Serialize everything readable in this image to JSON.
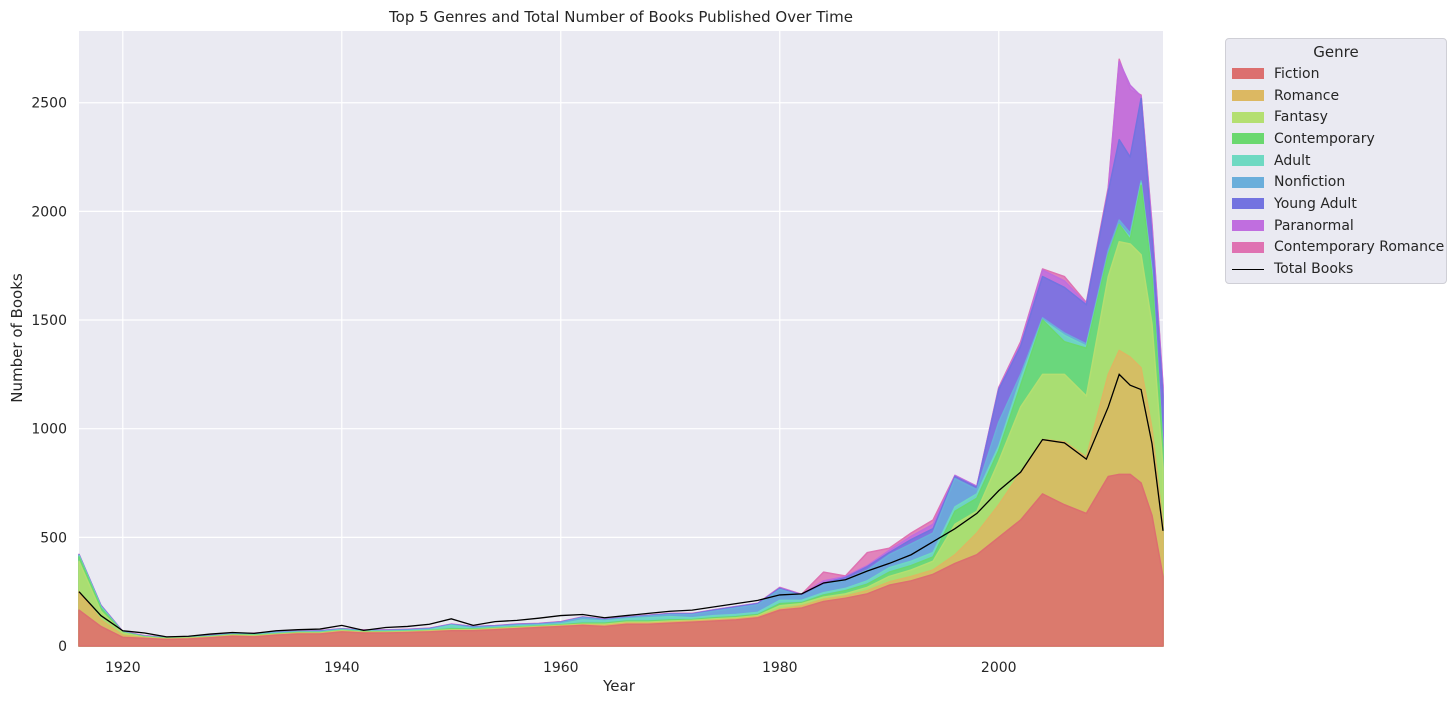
{
  "chart_data": {
    "type": "area",
    "title": "Top 5 Genres and Total Number of Books Published Over Time",
    "xlabel": "Year",
    "ylabel": "Number of Books",
    "xlim": [
      1916,
      2015
    ],
    "ylim": [
      0,
      2830
    ],
    "x_ticks": [
      1920,
      1940,
      1960,
      1980,
      2000
    ],
    "y_ticks": [
      0,
      500,
      1000,
      1500,
      2000,
      2500
    ],
    "grid": true,
    "legend_title": "Genre",
    "legend_position": "outside-top-right",
    "x": [
      1916,
      1918,
      1920,
      1922,
      1924,
      1926,
      1928,
      1930,
      1932,
      1934,
      1936,
      1938,
      1940,
      1942,
      1944,
      1946,
      1948,
      1950,
      1952,
      1954,
      1956,
      1958,
      1960,
      1962,
      1964,
      1966,
      1968,
      1970,
      1972,
      1974,
      1976,
      1978,
      1980,
      1982,
      1984,
      1986,
      1988,
      1990,
      1992,
      1994,
      1996,
      1998,
      2000,
      2002,
      2004,
      2006,
      2008,
      2010,
      2011,
      2012,
      2013,
      2014,
      2015
    ],
    "series": [
      {
        "name": "Fiction",
        "color": "#dc6f6f",
        "stacked_top": [
          165,
          90,
          40,
          35,
          30,
          32,
          38,
          45,
          42,
          50,
          55,
          55,
          65,
          60,
          60,
          62,
          65,
          70,
          70,
          75,
          80,
          85,
          90,
          95,
          90,
          100,
          100,
          105,
          110,
          115,
          120,
          130,
          165,
          175,
          205,
          220,
          240,
          280,
          300,
          330,
          380,
          420,
          500,
          580,
          700,
          650,
          610,
          780,
          790,
          790,
          750,
          600,
          320
        ]
      },
      {
        "name": "Romance",
        "color": "#dcb862",
        "stacked_top": [
          250,
          120,
          50,
          38,
          32,
          35,
          40,
          48,
          45,
          52,
          58,
          58,
          68,
          62,
          62,
          64,
          68,
          72,
          72,
          78,
          82,
          88,
          92,
          98,
          95,
          105,
          105,
          110,
          115,
          120,
          125,
          135,
          170,
          185,
          215,
          230,
          255,
          295,
          320,
          350,
          420,
          520,
          650,
          800,
          950,
          940,
          870,
          1250,
          1360,
          1330,
          1280,
          1000,
          560
        ]
      },
      {
        "name": "Fantasy",
        "color": "#b4df71",
        "stacked_top": [
          390,
          160,
          60,
          40,
          34,
          37,
          42,
          50,
          47,
          54,
          60,
          60,
          70,
          64,
          64,
          66,
          70,
          75,
          75,
          80,
          85,
          90,
          95,
          100,
          100,
          110,
          110,
          115,
          118,
          125,
          130,
          140,
          185,
          195,
          225,
          240,
          270,
          320,
          350,
          390,
          560,
          620,
          850,
          1100,
          1250,
          1250,
          1150,
          1700,
          1860,
          1850,
          1800,
          1480,
          820
        ]
      },
      {
        "name": "Contemporary",
        "color": "#6ad86f",
        "stacked_top": [
          410,
          175,
          62,
          42,
          36,
          38,
          44,
          52,
          50,
          56,
          62,
          62,
          72,
          66,
          66,
          68,
          72,
          80,
          78,
          82,
          88,
          92,
          98,
          105,
          105,
          115,
          115,
          120,
          122,
          130,
          135,
          145,
          195,
          200,
          235,
          255,
          285,
          340,
          370,
          410,
          620,
          680,
          900,
          1200,
          1500,
          1400,
          1370,
          1800,
          1940,
          1870,
          2120,
          1700,
          900
        ]
      },
      {
        "name": "Adult",
        "color": "#6ed9c2",
        "stacked_top": [
          415,
          180,
          63,
          43,
          37,
          39,
          45,
          53,
          52,
          58,
          64,
          64,
          74,
          68,
          68,
          70,
          74,
          95,
          80,
          86,
          92,
          96,
          102,
          120,
          115,
          125,
          130,
          135,
          130,
          140,
          145,
          155,
          210,
          210,
          245,
          265,
          300,
          360,
          390,
          430,
          640,
          700,
          920,
          1230,
          1500,
          1430,
          1380,
          1800,
          1940,
          1880,
          2130,
          1720,
          910
        ]
      },
      {
        "name": "Nonfiction",
        "color": "#6aaedb",
        "stacked_top": [
          418,
          183,
          64,
          44,
          38,
          40,
          46,
          55,
          55,
          62,
          66,
          67,
          77,
          70,
          70,
          73,
          78,
          98,
          86,
          90,
          97,
          100,
          108,
          130,
          120,
          130,
          138,
          145,
          145,
          160,
          175,
          190,
          260,
          230,
          280,
          305,
          350,
          420,
          470,
          520,
          770,
          720,
          1030,
          1250,
          1510,
          1440,
          1390,
          1820,
          1960,
          1900,
          2140,
          1730,
          920
        ]
      },
      {
        "name": "Young Adult",
        "color": "#7373e0",
        "stacked_top": [
          420,
          186,
          65,
          45,
          39,
          41,
          47,
          56,
          57,
          64,
          67,
          69,
          78,
          72,
          72,
          75,
          80,
          99,
          88,
          92,
          99,
          102,
          110,
          132,
          122,
          132,
          140,
          148,
          148,
          165,
          180,
          195,
          265,
          235,
          290,
          315,
          365,
          430,
          490,
          540,
          780,
          730,
          1180,
          1380,
          1700,
          1650,
          1570,
          2090,
          2330,
          2250,
          2520,
          1880,
          1150
        ]
      },
      {
        "name": "Paranormal",
        "color": "#c06edf",
        "stacked_top": [
          421,
          187,
          66,
          46,
          40,
          42,
          48,
          57,
          58,
          65,
          68,
          70,
          79,
          73,
          73,
          76,
          81,
          100,
          89,
          93,
          100,
          103,
          111,
          133,
          123,
          133,
          141,
          149,
          149,
          166,
          181,
          196,
          268,
          237,
          300,
          320,
          370,
          440,
          505,
          560,
          785,
          735,
          1185,
          1390,
          1730,
          1680,
          1575,
          2100,
          2690,
          2580,
          2530,
          1930,
          1190
        ]
      },
      {
        "name": "Contemporary Romance",
        "color": "#df72b2",
        "stacked_top": [
          422,
          188,
          67,
          47,
          41,
          43,
          49,
          58,
          59,
          66,
          69,
          71,
          80,
          74,
          74,
          77,
          82,
          101,
          90,
          94,
          101,
          104,
          112,
          134,
          124,
          134,
          142,
          150,
          150,
          167,
          182,
          197,
          270,
          238,
          340,
          322,
          430,
          450,
          520,
          580,
          785,
          735,
          1190,
          1400,
          1735,
          1700,
          1580,
          2110,
          2700,
          2560,
          2535,
          1940,
          1200
        ]
      }
    ],
    "total": {
      "name": "Total Books",
      "color": "#000000",
      "values": [
        250,
        140,
        70,
        60,
        42,
        45,
        55,
        62,
        58,
        70,
        75,
        78,
        95,
        72,
        85,
        90,
        100,
        125,
        95,
        112,
        118,
        128,
        140,
        145,
        130,
        140,
        150,
        160,
        165,
        180,
        195,
        210,
        235,
        240,
        290,
        305,
        345,
        380,
        420,
        480,
        540,
        610,
        715,
        800,
        950,
        935,
        860,
        1100,
        1250,
        1200,
        1180,
        930,
        530
      ]
    }
  }
}
